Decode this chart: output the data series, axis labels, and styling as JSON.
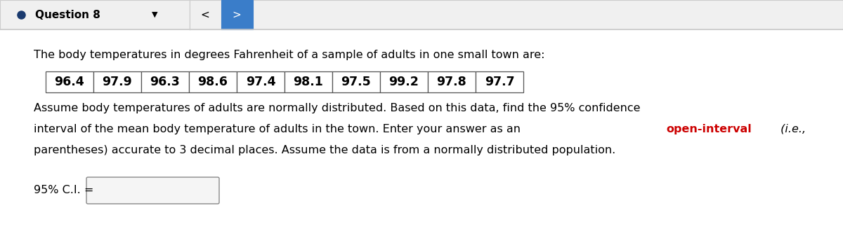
{
  "title_bar": "Question 8",
  "title_bar_fontsize": 11,
  "bg_color": "#ffffff",
  "header_bg": "#f0f0f0",
  "header_border": "#cccccc",
  "nav_button_color": "#3a7dc9",
  "intro_text": "The body temperatures in degrees Fahrenheit of a sample of adults in one small town are:",
  "temperatures": [
    96.4,
    97.9,
    96.3,
    98.6,
    97.4,
    98.1,
    97.5,
    99.2,
    97.8,
    97.7
  ],
  "body_text_line1": "Assume body temperatures of adults are normally distributed. Based on this data, find the 95% confidence",
  "body_text_line2_prefix": "interval of the mean body temperature of adults in the town. Enter your answer as an ",
  "body_text_red": "open-interval",
  "body_text_italic": " (i.e.,",
  "body_text_line3": "parentheses) accurate to 3 decimal places. Assume the data is from a normally distributed population.",
  "answer_label": "95% C.I. =",
  "text_color": "#000000",
  "red_color": "#cc0000",
  "table_border_color": "#555555",
  "input_box_bg": "#f5f5f5",
  "input_box_border": "#888888",
  "font_size_body": 11.5,
  "font_size_table": 12.5,
  "font_size_label": 11.5
}
